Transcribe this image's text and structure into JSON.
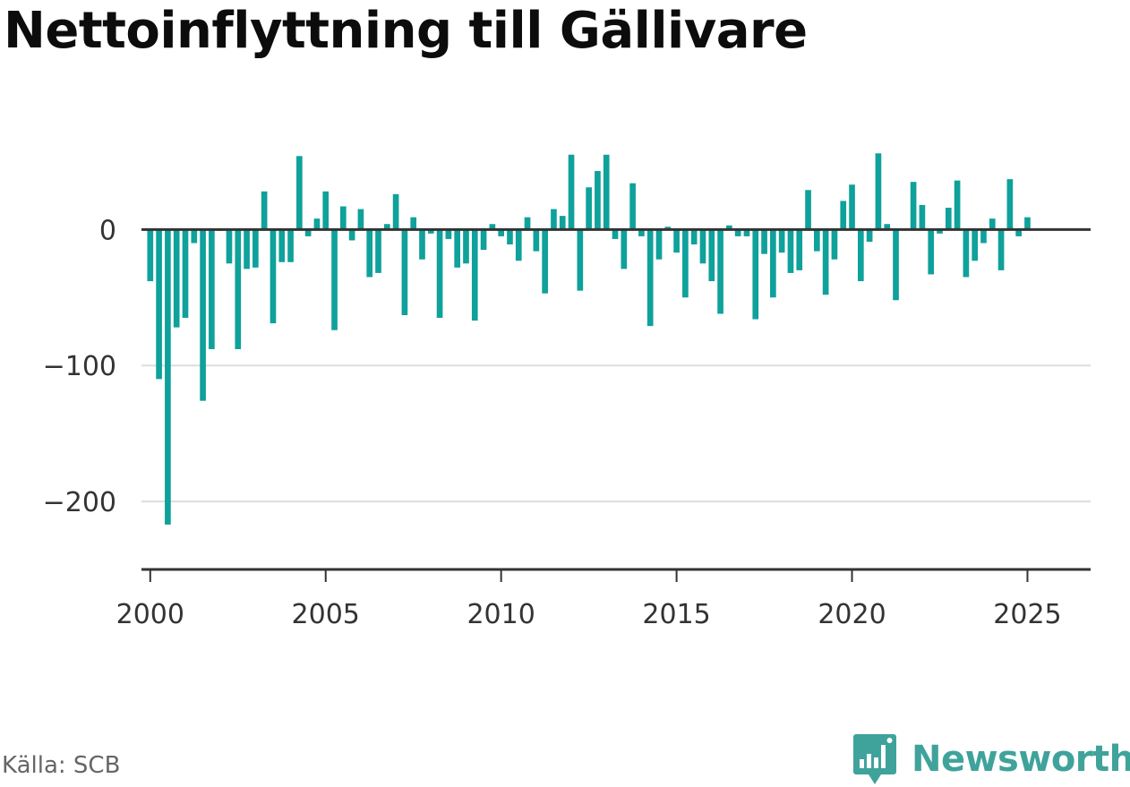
{
  "title": "Nettoinflyttning till Gällivare",
  "source": "Källa: SCB",
  "brand": "Newsworthy",
  "colors": {
    "bar": "#0fa19b",
    "zero_line": "#333333",
    "grid": "#dddddd",
    "axis": "#333333",
    "brand": "#3fa39b"
  },
  "icons": {
    "logo": "bar-chart-bubble-icon"
  },
  "chart_data": {
    "type": "bar",
    "title": "Nettoinflyttning till Gällivare",
    "xlabel": "",
    "ylabel": "",
    "ylim": [
      -250,
      70
    ],
    "xlim": [
      1999.75,
      2026.8
    ],
    "grid": true,
    "yticks": [
      {
        "value": 0,
        "label": "0"
      },
      {
        "value": -100,
        "label": "−100"
      },
      {
        "value": -200,
        "label": "−200"
      }
    ],
    "xticks": [
      {
        "value": 2000,
        "label": "2000"
      },
      {
        "value": 2005,
        "label": "2005"
      },
      {
        "value": 2010,
        "label": "2010"
      },
      {
        "value": 2015,
        "label": "2015"
      },
      {
        "value": 2020,
        "label": "2020"
      },
      {
        "value": 2025,
        "label": "2025"
      }
    ],
    "frequency": "quarterly",
    "series": [
      {
        "values": [
          -38,
          -110,
          -217,
          -72,
          -65,
          -10,
          -126,
          -88,
          -1,
          -25,
          -88,
          -29,
          -28,
          28,
          -69,
          -24,
          -24,
          54,
          -5,
          8,
          28,
          -74,
          17,
          -8,
          15,
          -35,
          -32,
          4,
          26,
          -63,
          9,
          -22,
          -3,
          -65,
          -7,
          -28,
          -25,
          -67,
          -15,
          4,
          -5,
          -11,
          -23,
          9,
          -16,
          -47,
          15,
          10,
          55,
          -45,
          31,
          43,
          55,
          -7,
          -29,
          34,
          -5,
          -71,
          -22,
          2,
          -17,
          -50,
          -11,
          -25,
          -38,
          -62,
          3,
          -5,
          -5,
          -66,
          -18,
          -50,
          -17,
          -32,
          -30,
          29,
          -16,
          -48,
          -22,
          21,
          33,
          -38,
          -9,
          56,
          4,
          -52,
          0,
          35,
          18,
          -33,
          -3,
          16,
          36,
          -35,
          -23,
          -10,
          8,
          -30,
          37,
          -5,
          9
        ]
      }
    ]
  }
}
